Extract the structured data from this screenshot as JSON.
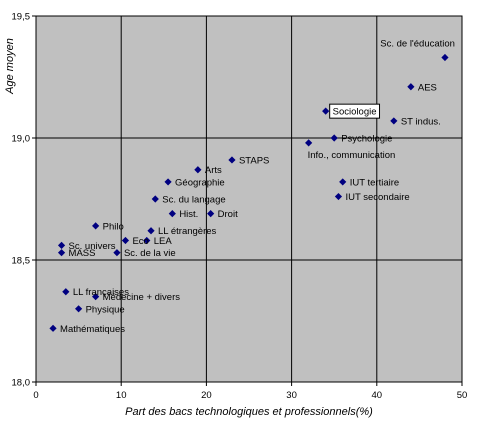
{
  "chart_data": {
    "type": "scatter",
    "xlabel": "Part des bacs technologiques et professionnels(%)",
    "ylabel": "Age moyen",
    "xlim": [
      0,
      50
    ],
    "ylim": [
      18.0,
      19.5
    ],
    "x_ticks": [
      "0",
      "10",
      "20",
      "30",
      "40",
      "50"
    ],
    "y_ticks": [
      "18,0",
      "18,5",
      "19,0",
      "19,5"
    ],
    "grid": true,
    "plot_background": "#c0c0c0",
    "marker_color": "#000080",
    "highlighted_point": "Sociologie",
    "points": [
      {
        "label": "Sc. de l'éducation",
        "x": 48.0,
        "y": 19.33
      },
      {
        "label": "AES",
        "x": 44.0,
        "y": 19.21
      },
      {
        "label": "ST indus.",
        "x": 42.0,
        "y": 19.07
      },
      {
        "label": "Sociologie",
        "x": 34.0,
        "y": 19.11
      },
      {
        "label": "Psychologie",
        "x": 35.0,
        "y": 19.0
      },
      {
        "label": "Info., communication",
        "x": 32.0,
        "y": 18.98
      },
      {
        "label": "STAPS",
        "x": 23.0,
        "y": 18.91
      },
      {
        "label": "Arts",
        "x": 19.0,
        "y": 18.87
      },
      {
        "label": "Géographie",
        "x": 15.5,
        "y": 18.82
      },
      {
        "label": "IUT tertiaire",
        "x": 36.0,
        "y": 18.82
      },
      {
        "label": "IUT secondaire",
        "x": 35.5,
        "y": 18.76
      },
      {
        "label": "Sc. du langage",
        "x": 14.0,
        "y": 18.75
      },
      {
        "label": "Hist.",
        "x": 16.0,
        "y": 18.69
      },
      {
        "label": "Droit",
        "x": 20.5,
        "y": 18.69
      },
      {
        "label": "Philo",
        "x": 7.0,
        "y": 18.64
      },
      {
        "label": "LL étrangères",
        "x": 13.5,
        "y": 18.62
      },
      {
        "label": "Eco",
        "x": 10.5,
        "y": 18.58
      },
      {
        "label": "LEA",
        "x": 13.0,
        "y": 18.58
      },
      {
        "label": "Sc. univers",
        "x": 3.0,
        "y": 18.56
      },
      {
        "label": "MASS",
        "x": 3.0,
        "y": 18.53
      },
      {
        "label": "Sc. de la vie",
        "x": 9.5,
        "y": 18.53
      },
      {
        "label": "LL françaises",
        "x": 3.5,
        "y": 18.37
      },
      {
        "label": "Médecine + divers",
        "x": 7.0,
        "y": 18.35
      },
      {
        "label": "Physique",
        "x": 5.0,
        "y": 18.3
      },
      {
        "label": "Mathématiques",
        "x": 2.0,
        "y": 18.22
      }
    ]
  }
}
